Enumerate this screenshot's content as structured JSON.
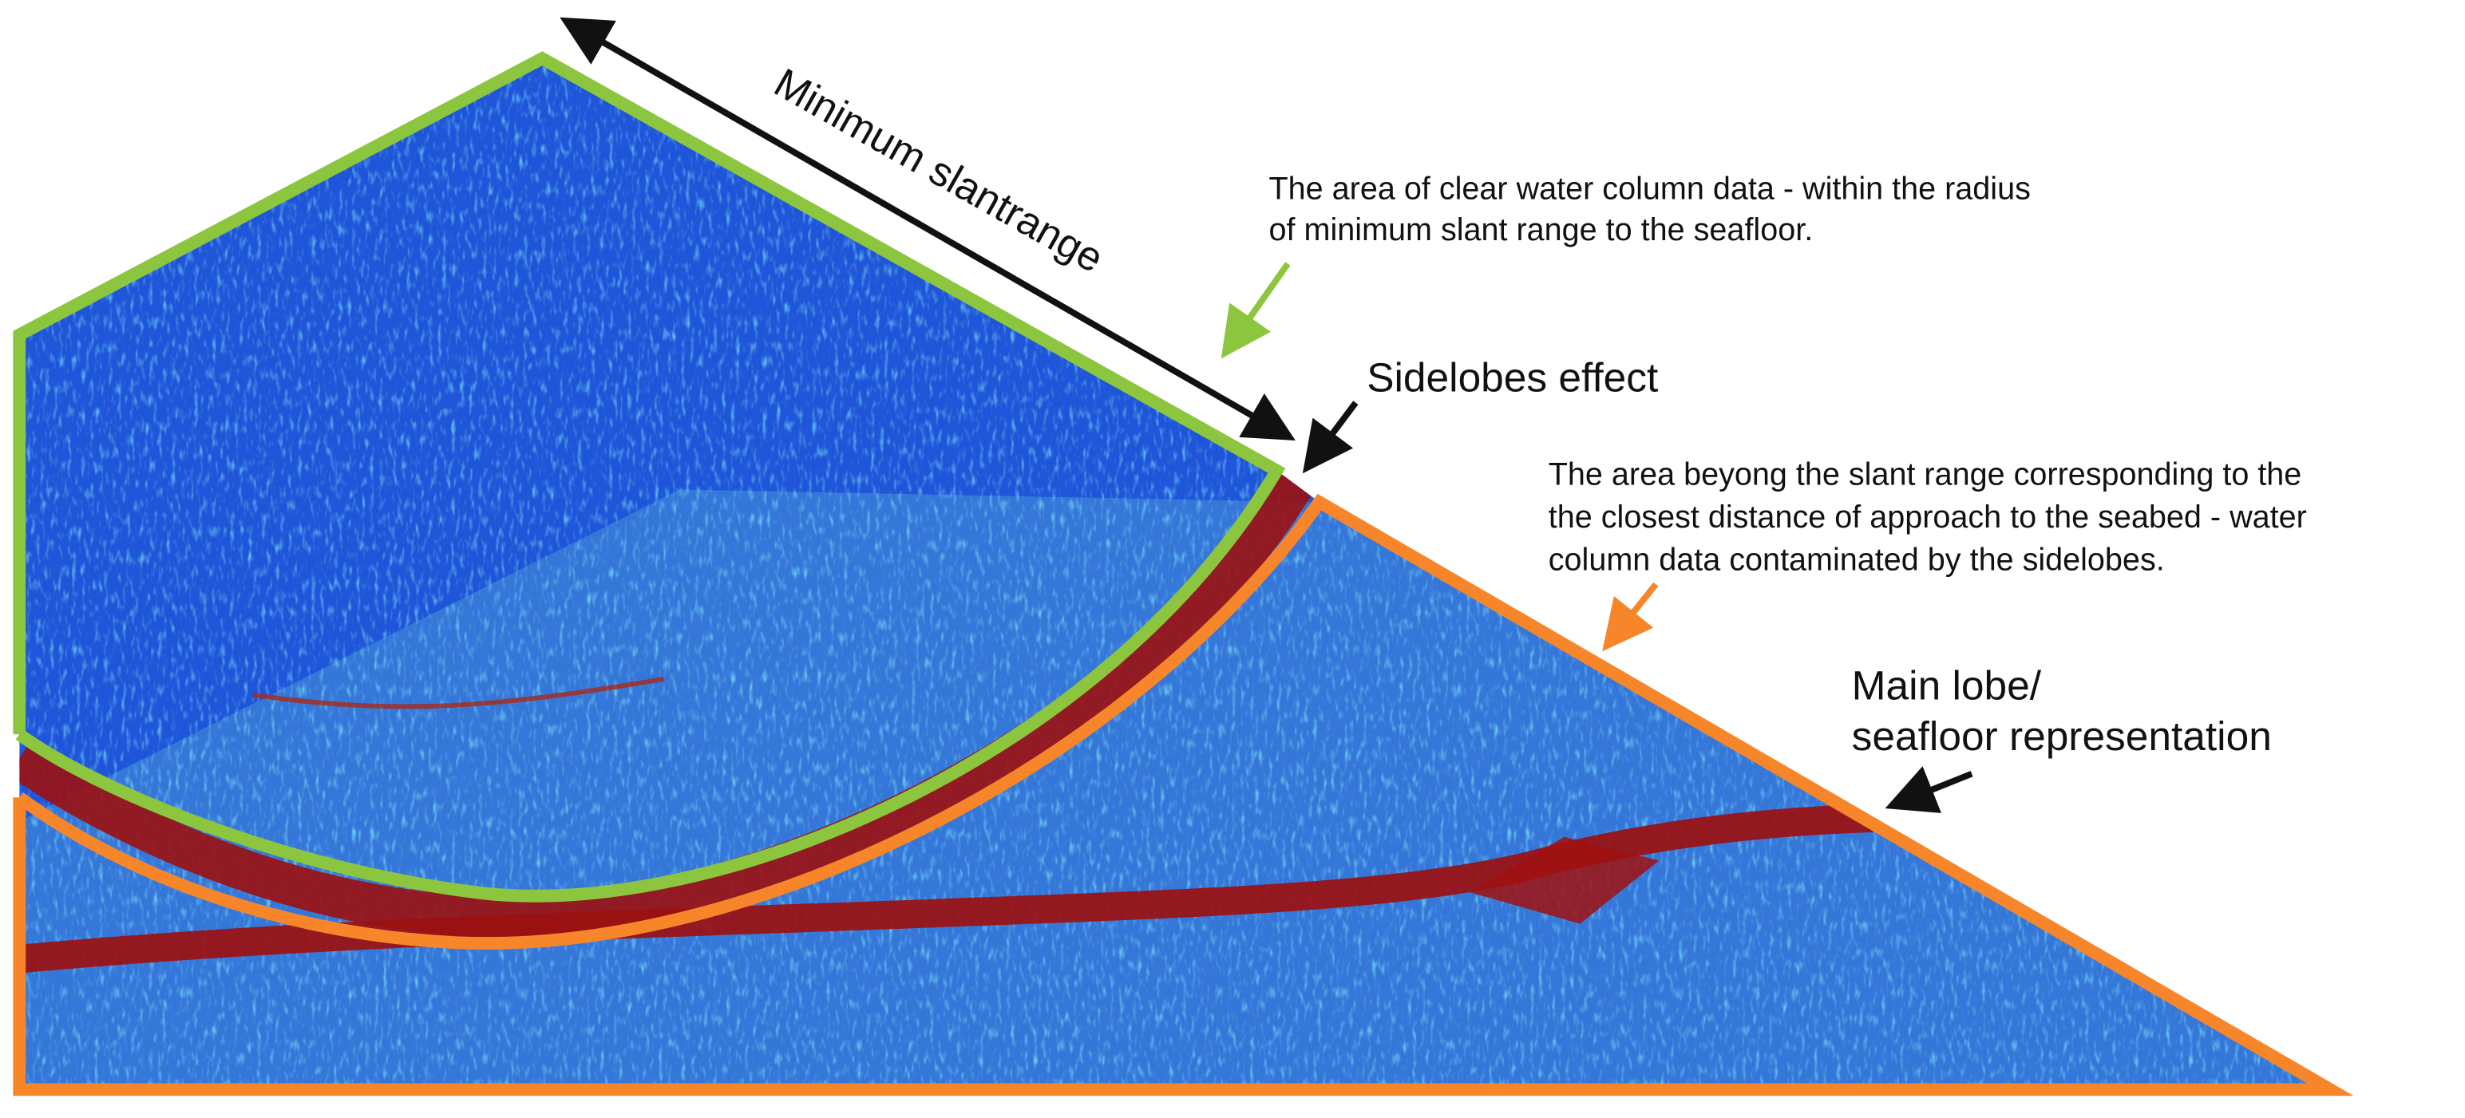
{
  "labels": {
    "minimum_slantrange": "Minimum slantrange",
    "clear_area": [
      "The area of clear water column data - within the radius",
      "of minimum slant range to the seafloor."
    ],
    "sidelobes_effect": "Sidelobes effect",
    "beyond_area": [
      "The area beyong the slant range corresponding to the",
      "the closest distance of approach to the seabed - water",
      "column data contaminated by the sidelobes."
    ],
    "main_lobe": [
      "Main lobe/",
      "seafloor representation"
    ]
  }
}
